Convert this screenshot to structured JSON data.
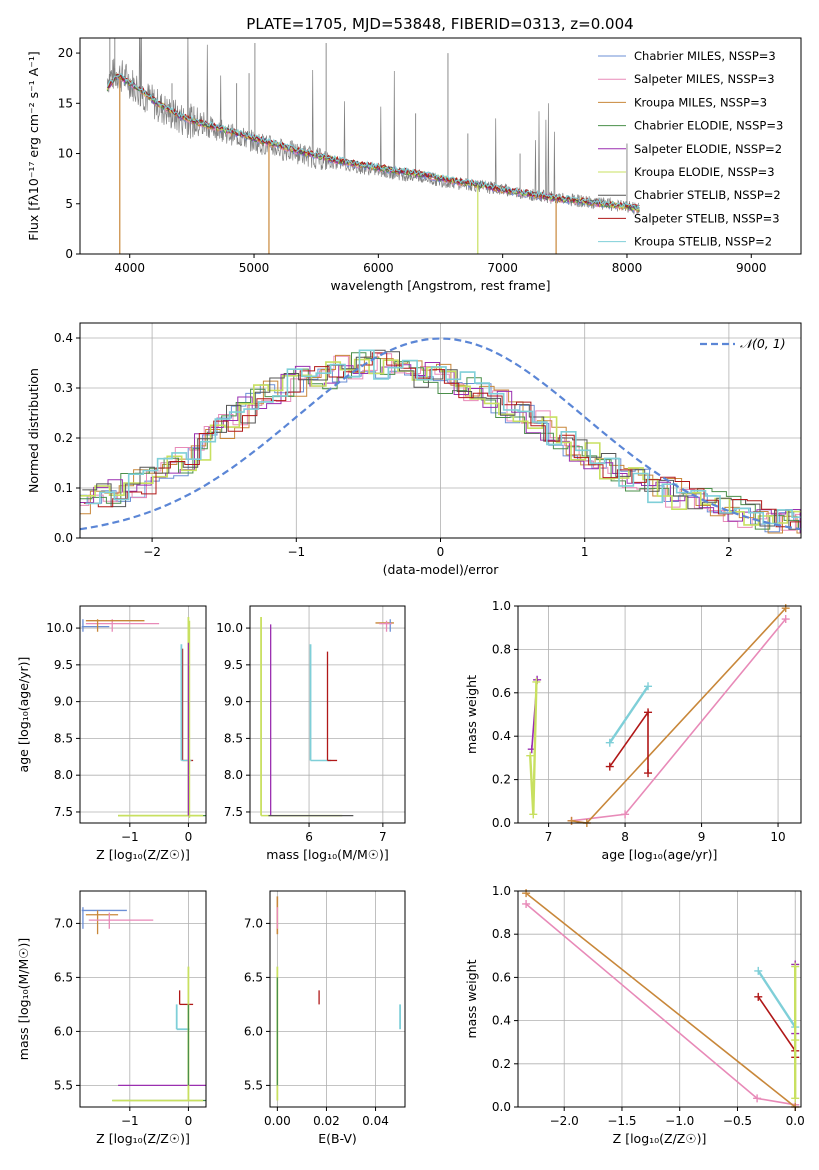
{
  "title": "PLATE=1705, MJD=53848, FIBERID=0313, z=0.004",
  "colors": {
    "chabrier_miles": "#6b8fd6",
    "salpeter_miles": "#e88ab8",
    "kroupa_miles": "#c8873a",
    "chabrier_elodie": "#4a8f4a",
    "salpeter_elodie": "#9a2fb0",
    "kroupa_elodie": "#c8e060",
    "chabrier_stelib": "#555555",
    "salpeter_stelib": "#b01818",
    "kroupa_stelib": "#7fcfd8",
    "data_spectrum": "#808080",
    "gaussian": "#5b86d6"
  },
  "chart_data": [
    {
      "id": "spectrum",
      "type": "line",
      "xlabel": "wavelength [Angstrom, rest frame]",
      "ylabel": "Flux [fλ10⁻¹⁷ erg cm⁻² s⁻¹ A⁻¹]",
      "xlim": [
        3600,
        9400
      ],
      "ylim": [
        0,
        21.5
      ],
      "xticks": [
        4000,
        5000,
        6000,
        7000,
        8000,
        9000
      ],
      "yticks": [
        0,
        5,
        10,
        15,
        20
      ],
      "grid": false,
      "legend_position": "top-right",
      "legend": [
        "Chabrier MILES, NSSP=3",
        "Salpeter MILES, NSSP=3",
        "Kroupa MILES, NSSP=3",
        "Chabrier ELODIE, NSSP=3",
        "Salpeter ELODIE, NSSP=2",
        "Kroupa ELODIE, NSSP=3",
        "Chabrier STELIB, NSSP=2",
        "Salpeter STELIB, NSSP=3",
        "Kroupa STELIB, NSSP=2"
      ],
      "data_curve": {
        "x": [
          3820,
          3900,
          4000,
          4100,
          4200,
          4300,
          4400,
          4500,
          4600,
          4700,
          4800,
          4900,
          5000,
          5200,
          5400,
          5600,
          5800,
          6000,
          6200,
          6400,
          6600,
          6800,
          7000,
          7200,
          7400,
          7600,
          7800,
          8000,
          8100
        ],
        "y": [
          17.5,
          18.0,
          17.2,
          16.0,
          15.0,
          14.2,
          13.5,
          13.2,
          12.8,
          12.4,
          12.0,
          11.6,
          11.2,
          10.5,
          9.9,
          9.2,
          8.7,
          8.3,
          7.9,
          7.5,
          7.1,
          6.8,
          6.4,
          6.0,
          5.6,
          5.3,
          5.0,
          4.7,
          4.5
        ]
      },
      "model_curve": {
        "x": [
          3820,
          3900,
          4000,
          4100,
          4200,
          4300,
          4400,
          4500,
          4600,
          4700,
          4800,
          4900,
          5000,
          5200,
          5400,
          5600,
          5800,
          6000,
          6200,
          6400,
          6600,
          6800,
          7000,
          7200,
          7400,
          7600,
          7800,
          8000,
          8100
        ],
        "y": [
          16.5,
          17.8,
          17.0,
          16.2,
          15.2,
          14.5,
          13.8,
          13.3,
          12.9,
          12.6,
          12.2,
          11.9,
          11.5,
          10.8,
          10.1,
          9.5,
          9.0,
          8.6,
          8.2,
          7.8,
          7.3,
          6.9,
          6.4,
          6.0,
          5.6,
          5.3,
          5.0,
          4.7,
          4.5
        ]
      }
    },
    {
      "id": "residuals",
      "type": "line",
      "xlabel": "(data-model)/error",
      "ylabel": "Normed distribution",
      "xlim": [
        -2.5,
        2.5
      ],
      "ylim": [
        0,
        0.43
      ],
      "xticks": [
        -2,
        -1,
        0,
        1,
        2
      ],
      "yticks": [
        0.0,
        0.1,
        0.2,
        0.3,
        0.4
      ],
      "grid": true,
      "legend_position": "top-right",
      "legend": [
        "𝒩(0, 1)"
      ],
      "histogram_envelope": {
        "x": [
          -2.5,
          -2.25,
          -2.0,
          -1.75,
          -1.5,
          -1.25,
          -1.0,
          -0.75,
          -0.5,
          -0.25,
          0.0,
          0.25,
          0.5,
          0.75,
          1.0,
          1.25,
          1.5,
          1.75,
          2.0,
          2.25,
          2.5
        ],
        "y": [
          0.06,
          0.09,
          0.12,
          0.16,
          0.22,
          0.28,
          0.31,
          0.33,
          0.35,
          0.34,
          0.32,
          0.3,
          0.26,
          0.22,
          0.17,
          0.13,
          0.1,
          0.08,
          0.06,
          0.04,
          0.03
        ]
      }
    },
    {
      "id": "age_vs_metallicity",
      "type": "scatter",
      "xlabel": "Z [log₁₀(Z/Z☉)]",
      "ylabel": "age  [log₁₀(age/yr)]",
      "xlim": [
        -1.85,
        0.3
      ],
      "ylim": [
        7.35,
        10.3
      ],
      "xticks": [
        -1,
        0
      ],
      "yticks": [
        7.5,
        8.0,
        8.5,
        9.0,
        9.5,
        10.0
      ],
      "grid": true
    },
    {
      "id": "age_vs_mass",
      "type": "scatter",
      "xlabel": "mass [log₁₀(M/M☉)]",
      "xlim": [
        5.2,
        7.3
      ],
      "ylim": [
        7.35,
        10.3
      ],
      "xticks": [
        6,
        7
      ],
      "yticks": [
        7.5,
        8.0,
        8.5,
        9.0,
        9.5,
        10.0
      ],
      "grid": true
    },
    {
      "id": "massweight_vs_age",
      "type": "line",
      "xlabel": "age  [log₁₀(age/yr)]",
      "ylabel": "mass weight",
      "xlim": [
        6.6,
        10.3
      ],
      "ylim": [
        0,
        1.0
      ],
      "xticks": [
        7,
        8,
        9,
        10
      ],
      "yticks": [
        0.0,
        0.2,
        0.4,
        0.6,
        0.8,
        1.0
      ],
      "grid": true,
      "series": [
        {
          "name": "Salpeter MILES",
          "x": [
            7.3,
            8.0,
            10.1
          ],
          "y": [
            0.01,
            0.04,
            0.94
          ]
        },
        {
          "name": "Kroupa MILES",
          "x": [
            7.3,
            7.5,
            10.1
          ],
          "y": [
            0.01,
            0.0,
            0.99
          ]
        },
        {
          "name": "Kroupa STELIB",
          "x": [
            7.8,
            8.3
          ],
          "y": [
            0.37,
            0.63
          ]
        },
        {
          "name": "Salpeter STELIB",
          "x": [
            7.8,
            8.3,
            8.3
          ],
          "y": [
            0.26,
            0.51,
            0.23
          ]
        },
        {
          "name": "Salpeter ELODIE",
          "x": [
            6.78,
            6.85
          ],
          "y": [
            0.34,
            0.66
          ]
        },
        {
          "name": "Kroupa ELODIE",
          "x": [
            6.76,
            6.8,
            6.84
          ],
          "y": [
            0.31,
            0.04,
            0.65
          ]
        }
      ]
    },
    {
      "id": "mass_vs_metallicity",
      "type": "scatter",
      "xlabel": "Z [log₁₀(Z/Z☉)]",
      "ylabel": "mass [log₁₀(M/M☉)]",
      "xlim": [
        -1.85,
        0.3
      ],
      "ylim": [
        5.3,
        7.3
      ],
      "xticks": [
        -1,
        0
      ],
      "yticks": [
        5.5,
        6.0,
        6.5,
        7.0
      ],
      "grid": true
    },
    {
      "id": "mass_vs_ebv",
      "type": "scatter",
      "xlabel": "E(B-V)",
      "xlim": [
        -0.003,
        0.052
      ],
      "ylim": [
        5.3,
        7.3
      ],
      "xticks": [
        0.0,
        0.02,
        0.04
      ],
      "yticks": [
        5.5,
        6.0,
        6.5,
        7.0
      ],
      "grid": true
    },
    {
      "id": "massweight_vs_metallicity",
      "type": "line",
      "xlabel": "Z [log₁₀(Z/Z☉)]",
      "ylabel": "mass weight",
      "xlim": [
        -2.4,
        0.05
      ],
      "ylim": [
        0,
        1.0
      ],
      "xticks": [
        -2.0,
        -1.5,
        -1.0,
        -0.5,
        0.0
      ],
      "yticks": [
        0.0,
        0.2,
        0.4,
        0.6,
        0.8,
        1.0
      ],
      "grid": true,
      "series": [
        {
          "name": "Salpeter MILES",
          "x": [
            -2.33,
            -0.33,
            0.0
          ],
          "y": [
            0.94,
            0.04,
            0.01
          ]
        },
        {
          "name": "Kroupa MILES",
          "x": [
            -2.33,
            0.0
          ],
          "y": [
            0.99,
            0.0
          ]
        },
        {
          "name": "Kroupa STELIB",
          "x": [
            -0.32,
            0.0
          ],
          "y": [
            0.63,
            0.37
          ]
        },
        {
          "name": "Salpeter STELIB",
          "x": [
            -0.32,
            0.0,
            0.0
          ],
          "y": [
            0.51,
            0.26,
            0.23
          ]
        },
        {
          "name": "Salpeter ELODIE",
          "x": [
            0.0,
            0.0
          ],
          "y": [
            0.66,
            0.34
          ]
        },
        {
          "name": "Kroupa ELODIE",
          "x": [
            0.0,
            0.0,
            0.0
          ],
          "y": [
            0.65,
            0.31,
            0.04
          ]
        }
      ]
    }
  ]
}
